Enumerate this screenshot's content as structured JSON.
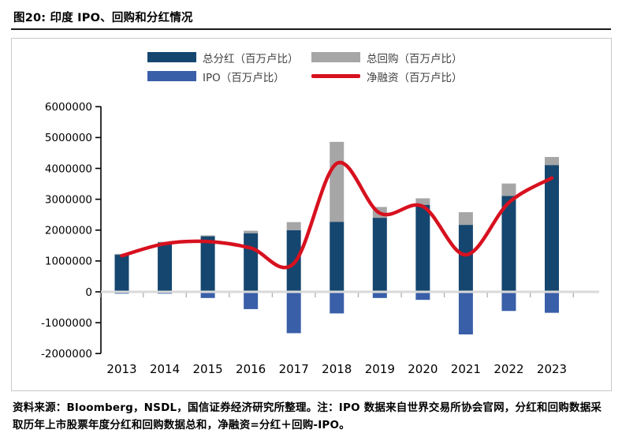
{
  "header": {
    "title": "图20: 印度 IPO、回购和分红情况"
  },
  "footer": {
    "text": "资料来源：Bloomberg，NSDL，国信证券经济研究所整理。注：IPO 数据来自世界交易所协会官网，分红和回购数据采取历年上市股票年度分红和回购数据总和，净融资=分红＋回购-IPO。"
  },
  "colors": {
    "dividend_bar": "#15466F",
    "buyback_bar": "#A6A6A6",
    "ipo_bar": "#3A5FA9",
    "net_line": "#D7111F",
    "zero_line": "#D9D9D9",
    "axis": "#000000",
    "minor_tick": "#B3B3B3",
    "frame": "#C9C9C9"
  },
  "chart_data": {
    "type": "bar",
    "subtype": "stacked-bars-with-line-overlay",
    "title": "图20: 印度 IPO、回购和分红情况",
    "xlabel": "",
    "ylabel": "",
    "categories": [
      "2013",
      "2014",
      "2015",
      "2016",
      "2017",
      "2018",
      "2019",
      "2020",
      "2021",
      "2022",
      "2023"
    ],
    "series": [
      {
        "name": "总分红（百万卢比）",
        "type": "bar",
        "role": "base",
        "color": "#15466F",
        "values": [
          1200000,
          1600000,
          1800000,
          1900000,
          2000000,
          2270000,
          2400000,
          2820000,
          2170000,
          3110000,
          4110000
        ]
      },
      {
        "name": "总回购（百万卢比）",
        "type": "bar",
        "role": "stack-top",
        "color": "#A6A6A6",
        "values": [
          30000,
          20000,
          30000,
          80000,
          260000,
          2590000,
          350000,
          210000,
          410000,
          400000,
          260000
        ]
      },
      {
        "name": "IPO（百万卢比）",
        "type": "bar",
        "role": "negative",
        "color": "#3A5FA9",
        "values": [
          -60000,
          -60000,
          -200000,
          -560000,
          -1340000,
          -700000,
          -200000,
          -260000,
          -1380000,
          -620000,
          -680000
        ]
      },
      {
        "name": "净融资（百万卢比）",
        "type": "line",
        "role": "overlay",
        "color": "#D7111F",
        "values": [
          1170000,
          1560000,
          1630000,
          1420000,
          920000,
          4160000,
          2550000,
          2770000,
          1200000,
          2890000,
          3690000
        ]
      }
    ],
    "ylim": [
      -2000000,
      6000000
    ],
    "ytick_step": 1000000,
    "ytick_labels": [
      "6000000",
      "5000000",
      "4000000",
      "3000000",
      "2000000",
      "1000000",
      "0",
      "-1000000",
      "-2000000"
    ],
    "grid": false,
    "legend_position": "top-center"
  }
}
